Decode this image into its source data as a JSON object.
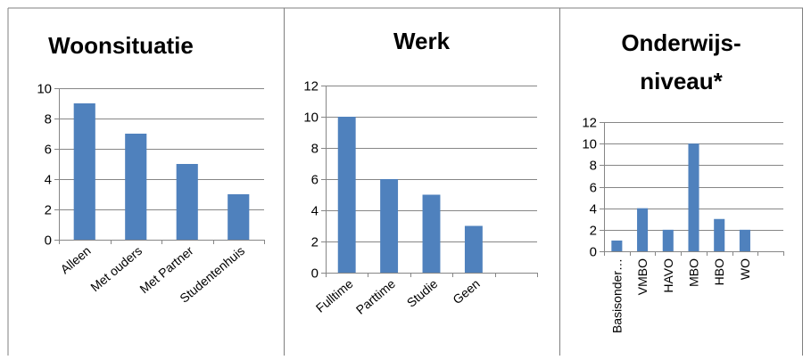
{
  "colors": {
    "bar": "#4f81bd",
    "grid": "#868686",
    "border": "#7f7f7f",
    "text": "#000000"
  },
  "chart_data": [
    {
      "type": "bar",
      "title": "Woonsituatie",
      "categories": [
        "Alleen",
        "Met ouders",
        "Met Partner",
        "Studentenhuis"
      ],
      "values": [
        9,
        7,
        5,
        3
      ],
      "ylim": [
        0,
        10
      ],
      "yticks": [
        0,
        2,
        4,
        6,
        8,
        10
      ],
      "grid": true,
      "xlabel": "",
      "ylabel": ""
    },
    {
      "type": "bar",
      "title": "Werk",
      "categories": [
        "Fulltime",
        "Parttime",
        "Studie",
        "Geen",
        ""
      ],
      "values": [
        10,
        6,
        5,
        3,
        null
      ],
      "ylim": [
        0,
        12
      ],
      "yticks": [
        0,
        2,
        4,
        6,
        8,
        10,
        12
      ],
      "grid": true,
      "xlabel": "",
      "ylabel": ""
    },
    {
      "type": "bar",
      "title": [
        "Onderwijs-",
        "niveau*"
      ],
      "categories": [
        "Basisonder…",
        "VMBO",
        "HAVO",
        "MBO",
        "HBO",
        "WO",
        ""
      ],
      "values": [
        1,
        4,
        2,
        10,
        3,
        2,
        null
      ],
      "ylim": [
        0,
        12
      ],
      "yticks": [
        0,
        2,
        4,
        6,
        8,
        10,
        12
      ],
      "grid": true,
      "xlabel": "",
      "ylabel": ""
    }
  ]
}
